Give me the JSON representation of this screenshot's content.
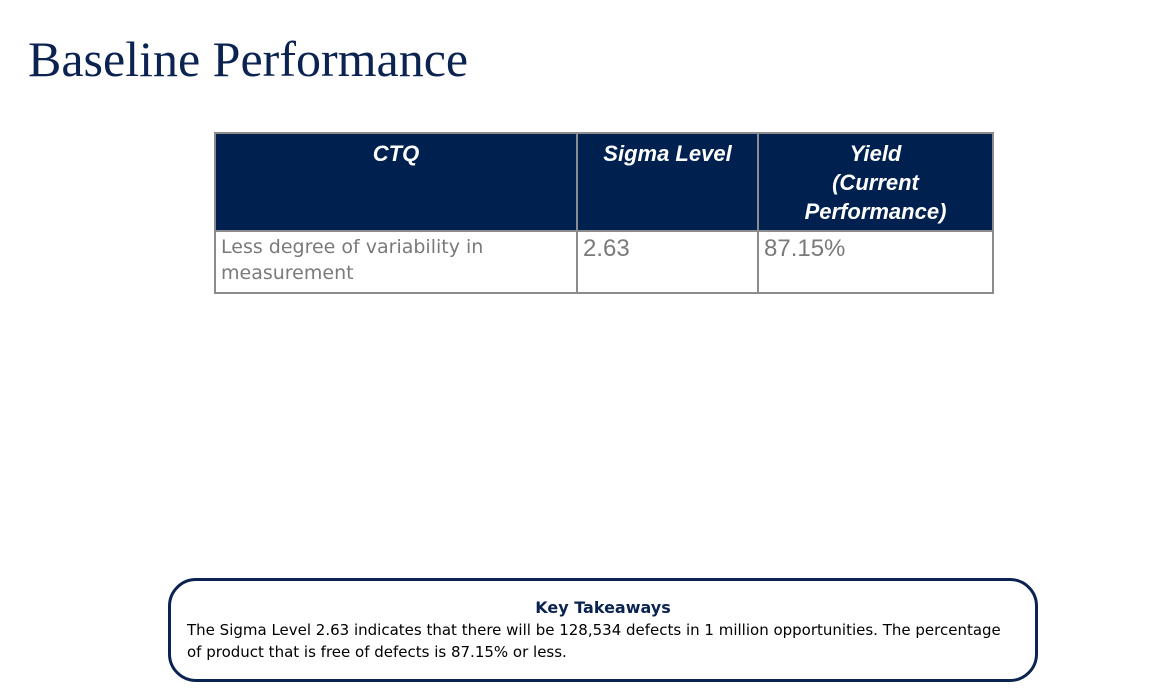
{
  "slide": {
    "title": "Baseline Performance"
  },
  "table": {
    "headers": [
      "CTQ",
      "Sigma Level",
      "Yield (Current Performance)"
    ],
    "header_yield_lines": [
      "Yield",
      "(Current",
      "Performance)"
    ],
    "rows": [
      {
        "ctq": "Less degree of variability in measurement",
        "sigma_level": "2.63",
        "yield": "87.15%"
      }
    ]
  },
  "takeaways": {
    "title": "Key Takeaways",
    "body": "The Sigma Level 2.63 indicates that there will be 128,534 defects in 1 million opportunities. The percentage of product that is free of defects is 87.15% or less."
  },
  "colors": {
    "title_navy": "#0a2351",
    "header_fill": "#00214f",
    "cell_text_gray": "#7a7a7a",
    "border_gray": "#8c8c8c"
  }
}
